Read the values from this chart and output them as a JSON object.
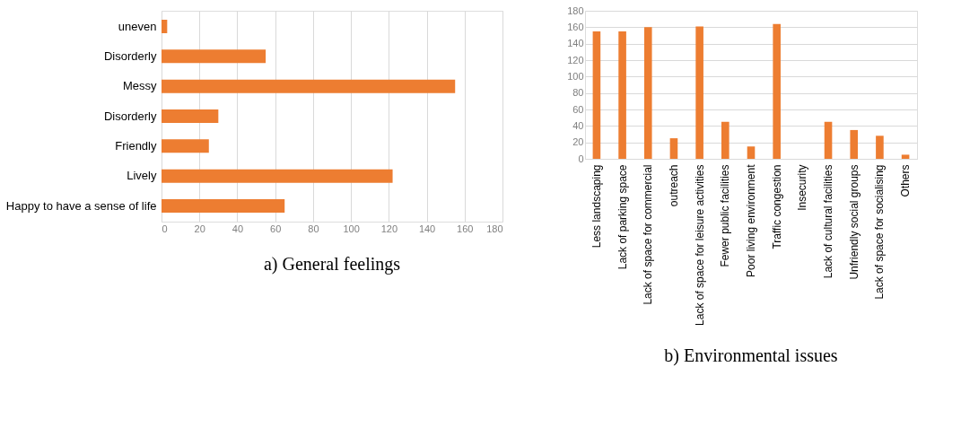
{
  "chart_data": [
    {
      "type": "bar",
      "orientation": "horizontal",
      "title": "a)    General feelings",
      "categories": [
        "uneven",
        "Disorderly",
        "Messy",
        "Disorderly",
        "Friendly",
        "Lively",
        "Happy to have a sense of life"
      ],
      "values": [
        3,
        55,
        155,
        30,
        25,
        122,
        65
      ],
      "color": "#ed7d31",
      "xlim": [
        0,
        180
      ],
      "xticks": [
        0,
        20,
        40,
        60,
        80,
        100,
        120,
        140,
        160,
        180
      ],
      "grid": "x"
    },
    {
      "type": "bar",
      "title": "b)    Environmental issues",
      "categories": [
        "Less landscaping",
        "Lack of parking space",
        "Lack of space for commercial",
        "outreach",
        "Lack of space for leisure activities",
        "Fewer public facilities",
        "Poor living environment",
        "Traffic congestion",
        "Insecurity",
        "Lack of cultural facilities",
        "Unfriendly social groups",
        "Lack of space for socialising",
        "Others"
      ],
      "values": [
        155,
        155,
        160,
        25,
        161,
        45,
        15,
        164,
        null,
        45,
        35,
        28,
        5
      ],
      "color": "#ed7d31",
      "ylim": [
        0,
        180
      ],
      "yticks": [
        0,
        20,
        40,
        60,
        80,
        100,
        120,
        140,
        160,
        180
      ],
      "grid": "y"
    }
  ]
}
